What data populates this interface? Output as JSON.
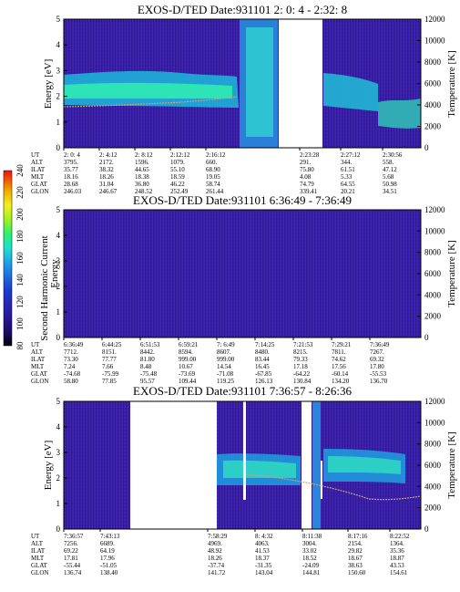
{
  "colorbar": {
    "label": "Second Harmonic Current",
    "ticks": [
      "240",
      "220",
      "200",
      "180",
      "160",
      "140",
      "120",
      "100",
      "80"
    ]
  },
  "panels": [
    {
      "title": "EXOS-D/TED   Date:931101  2: 0: 4 - 2:32: 8",
      "row_labels": [
        "UT",
        "ALT",
        "ILAT",
        "MLT",
        "GLAT",
        "GLON"
      ],
      "columns": [
        [
          "2: 0: 4",
          "3795.",
          "35.77",
          "18.16",
          "28.68",
          "246.03"
        ],
        [
          "2: 4:12",
          "2172.",
          "38.32",
          "18.26",
          "31.04",
          "246.67"
        ],
        [
          "2: 8:12",
          "1596.",
          "44.65",
          "18.38",
          "36.80",
          "248.52"
        ],
        [
          "2:12:12",
          "1079.",
          "55.10",
          "18.59",
          "46.22",
          "252.49"
        ],
        [
          "2:16:12",
          "660.",
          "68.90",
          "19.05",
          "58.74",
          "261.44"
        ],
        [
          "2:23:28",
          "291.",
          "75.80",
          "4.08",
          "74.79",
          "339.41"
        ],
        [
          "2:27:12",
          "344.",
          "61.51",
          "5.33",
          "64.55",
          "20.21"
        ],
        [
          "2:30:56",
          "558.",
          "47.12",
          "5.68",
          "50.98",
          "34.51"
        ]
      ]
    },
    {
      "title": "EXOS-D/TED   Date:931101  6:36:49 - 7:36:49",
      "row_labels": [
        "UT",
        "ALT",
        "ILAT",
        "MLT",
        "GLAT",
        "GLON"
      ],
      "columns": [
        [
          "6:36:49",
          "7712.",
          "73.30",
          "7.24",
          "-74.68",
          "58.80"
        ],
        [
          "6:44:25",
          "8151.",
          "77.77",
          "7.66",
          "-75.99",
          "77.85"
        ],
        [
          "6:51:53",
          "8442.",
          "81.80",
          "8.48",
          "-75.48",
          "95.57"
        ],
        [
          "6:59:21",
          "8594.",
          "999.00",
          "10.67",
          "-73.69",
          "109.44"
        ],
        [
          "7: 6:49",
          "8607.",
          "999.00",
          "14.54",
          "-71.08",
          "119.25"
        ],
        [
          "7:14:25",
          "8480.",
          "83.44",
          "16.45",
          "-67.85",
          "126.13"
        ],
        [
          "7:21:53",
          "8215.",
          "79.33",
          "17.18",
          "-64.22",
          "130.84"
        ],
        [
          "7:29:21",
          "7811.",
          "74.62",
          "17.56",
          "-60.14",
          "134.20"
        ],
        [
          "7:36:49",
          "7267.",
          "69.32",
          "17.80",
          "-55.53",
          "136.70"
        ]
      ]
    },
    {
      "title": "EXOS-D/TED   Date:931101  7:36:57 - 8:26:36",
      "row_labels": [
        "UT",
        "ALT",
        "ILAT",
        "MLT",
        "GLAT",
        "GLON"
      ],
      "columns": [
        [
          "7:36:57",
          "7256.",
          "69.22",
          "17.81",
          "-55.44",
          "136.74"
        ],
        [
          "7:43:13",
          "6689.",
          "64.19",
          "17.96",
          "-51.05",
          "138.40"
        ],
        [
          "7:58:29",
          "4969.",
          "48.92",
          "18.26",
          "-37.74",
          "141.72"
        ],
        [
          "8: 4:32",
          "4063.",
          "41.53",
          "18.37",
          "-31.35",
          "143.04"
        ],
        [
          "8:11:38",
          "3004.",
          "33.02",
          "18.52",
          "-24.09",
          "144.81"
        ],
        [
          "8:17:16",
          "2154.",
          "29.82",
          "18.67",
          "38.63",
          "150.60"
        ],
        [
          "8:22:52",
          "1364.",
          "35.36",
          "18.87",
          "43.53",
          "154.61"
        ]
      ]
    }
  ],
  "chart_data": {
    "type": "heatmap",
    "plots": [
      {
        "title": "EXOS-D/TED   Date:931101  2: 0: 4 - 2:32: 8",
        "ylabel": "Energy [eV]",
        "y2label": "Temperature [K]",
        "ylim": [
          0,
          5
        ],
        "y2lim": [
          0,
          12000
        ],
        "yticks": [
          "0",
          "1",
          "2",
          "3",
          "4",
          "5"
        ],
        "y2ticks": [
          "0",
          "2000",
          "4000",
          "6000",
          "8000",
          "10000",
          "12000"
        ]
      },
      {
        "title": "EXOS-D/TED   Date:931101  6:36:49 - 7:36:49",
        "ylabel": "Energy",
        "y2label": "Temperature [K]",
        "ylim": [
          0,
          5
        ],
        "y2lim": [
          0,
          12000
        ],
        "yticks": [
          "0",
          "1",
          "2",
          "3",
          "4",
          "5"
        ],
        "y2ticks": [
          "0",
          "2000",
          "4000",
          "6000",
          "8000",
          "10000",
          "12000"
        ]
      },
      {
        "title": "EXOS-D/TED   Date:931101  7:36:57 - 8:26:36",
        "ylabel": "Energy [eV]",
        "y2label": "Temperature [K]",
        "ylim": [
          0,
          5
        ],
        "y2lim": [
          0,
          12000
        ],
        "yticks": [
          "0",
          "1",
          "2",
          "3",
          "4",
          "5"
        ],
        "y2ticks": [
          "0",
          "2000",
          "4000",
          "6000",
          "8000",
          "10000",
          "12000"
        ]
      }
    ],
    "colorbar_range": [
      80,
      240
    ],
    "colors": {
      "background": "#3a1fa0",
      "band": "#1de0b8",
      "band_core": "#22d0f0",
      "trace": "#c8a07a"
    }
  }
}
